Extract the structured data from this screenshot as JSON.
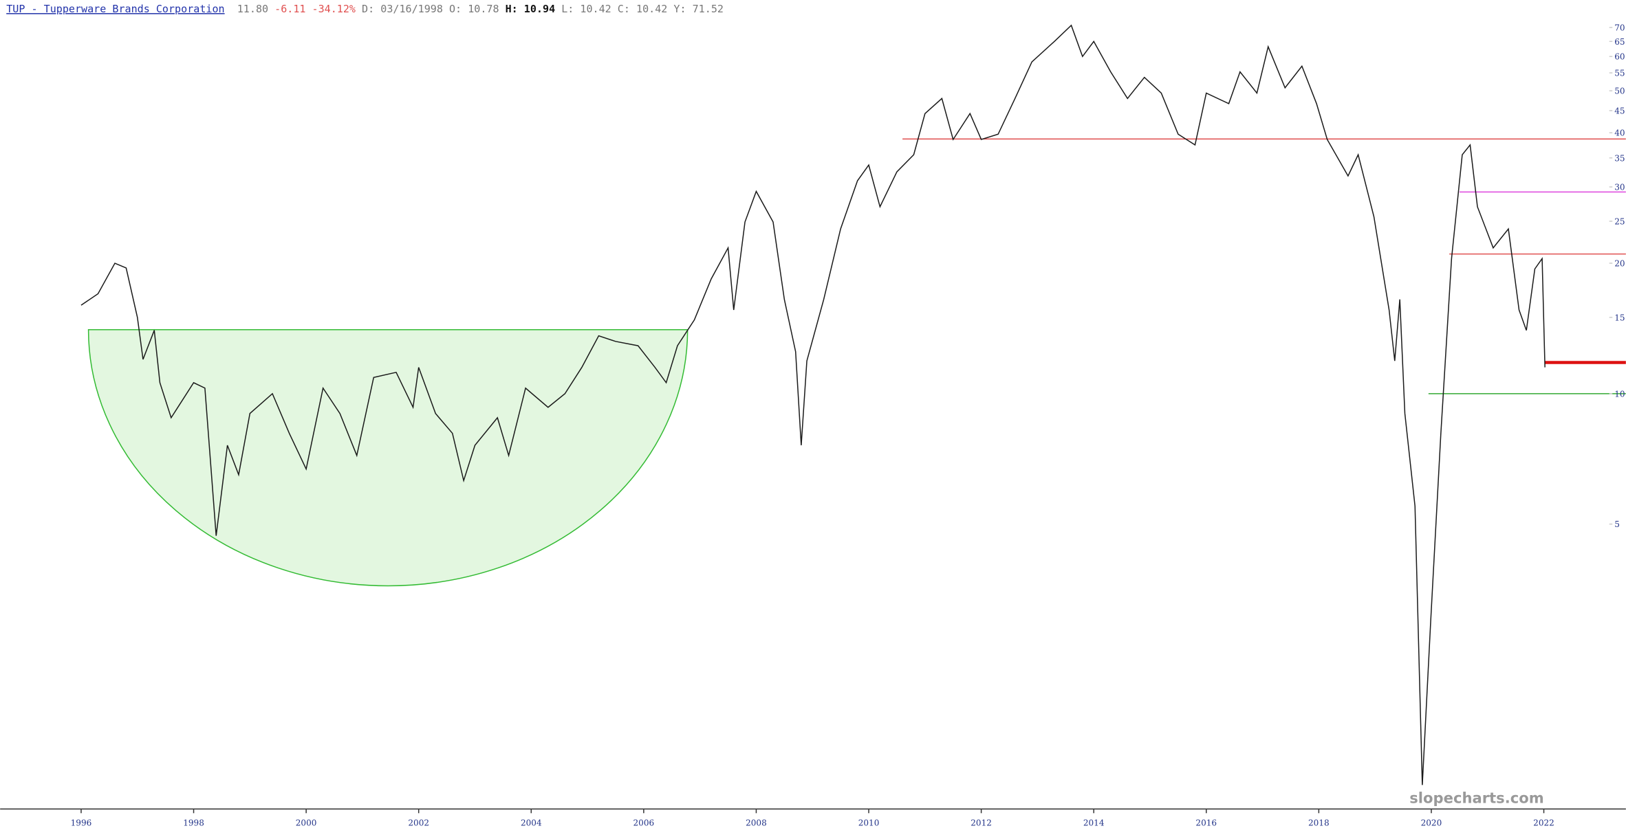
{
  "chart_data": {
    "type": "line",
    "title": "TUP - Tupperware Brands Corporation",
    "quote": [
      {
        "text": "11.80",
        "color": "#777777",
        "bold": false
      },
      {
        "text": "-6.11",
        "color": "#e05050",
        "bold": false
      },
      {
        "text": "-34.12%",
        "color": "#e05050",
        "bold": false
      },
      {
        "text": "D: 03/16/1998",
        "color": "#777777",
        "bold": false
      },
      {
        "text": "O: 10.78",
        "color": "#777777",
        "bold": false
      },
      {
        "text": "H: 10.94",
        "color": "#111111",
        "bold": true
      },
      {
        "text": "L: 10.42",
        "color": "#777777",
        "bold": false
      },
      {
        "text": "C: 10.42",
        "color": "#777777",
        "bold": false
      },
      {
        "text": "Y: 71.52",
        "color": "#777777",
        "bold": false
      }
    ],
    "watermark": "slopecharts.com",
    "color": "#1a1a1a",
    "log_scale": true,
    "xlim": [
      1994.56,
      2023.09
    ],
    "ylim": [
      1.1,
      81
    ],
    "xticks": [
      1996,
      1998,
      2000,
      2002,
      2004,
      2006,
      2008,
      2010,
      2012,
      2014,
      2016,
      2018,
      2020,
      2022
    ],
    "yticks": [
      5,
      10,
      15,
      20,
      25,
      30,
      35,
      40,
      45,
      50,
      55,
      60,
      65,
      70
    ],
    "x": [
      1996.0,
      1996.3,
      1996.6,
      1996.8,
      1997.0,
      1997.1,
      1997.3,
      1997.4,
      1997.6,
      1998.0,
      1998.2,
      1998.4,
      1998.6,
      1998.8,
      1999.0,
      1999.4,
      1999.7,
      2000.0,
      2000.3,
      2000.6,
      2000.9,
      2001.2,
      2001.6,
      2001.9,
      2002.0,
      2002.3,
      2002.6,
      2002.8,
      2003.0,
      2003.4,
      2003.6,
      2003.9,
      2004.3,
      2004.6,
      2004.9,
      2005.2,
      2005.5,
      2005.9,
      2006.2,
      2006.4,
      2006.6,
      2006.9,
      2007.2,
      2007.5,
      2007.6,
      2007.8,
      2008.0,
      2008.3,
      2008.5,
      2008.7,
      2008.8,
      2008.9,
      2009.2,
      2009.5,
      2009.8,
      2010.0,
      2010.2,
      2010.5,
      2010.8,
      2011.0,
      2011.3,
      2011.5,
      2011.8,
      2012.0,
      2012.3,
      2012.6,
      2012.9,
      2013.3,
      2013.6,
      2013.8,
      2014.0,
      2014.3,
      2014.6,
      2014.9,
      2015.2,
      2015.5,
      2015.8,
      2016.0,
      2016.4,
      2016.6,
      2016.9,
      2017.1,
      2017.4,
      2017.7,
      2017.96,
      2018.15,
      2018.52,
      2018.7,
      2018.98,
      2019.16,
      2019.25,
      2019.35,
      2019.44,
      2019.53,
      2019.71,
      2019.84,
      2019.99,
      2020.17,
      2020.27,
      2020.36,
      2020.55,
      2020.69,
      2020.82,
      2021.1,
      2021.37,
      2021.56,
      2021.69,
      2021.84,
      2021.97,
      2022.02
    ],
    "values": [
      16,
      17,
      20,
      19.5,
      15,
      12,
      14,
      10.6,
      8.8,
      10.6,
      10.3,
      4.7,
      7.6,
      6.5,
      9.0,
      10.0,
      8.1,
      6.7,
      10.3,
      9.0,
      7.2,
      10.9,
      11.2,
      9.3,
      11.5,
      9.0,
      8.1,
      6.3,
      7.6,
      8.8,
      7.2,
      10.3,
      9.3,
      10.0,
      11.5,
      13.6,
      13.2,
      12.9,
      11.5,
      10.6,
      12.9,
      14.8,
      18.4,
      21.7,
      15.6,
      24.9,
      29.3,
      24.9,
      16.5,
      12.5,
      7.6,
      11.9,
      16.5,
      24.0,
      31.0,
      33.7,
      27.0,
      32.5,
      35.6,
      44.3,
      48.0,
      38.6,
      44.3,
      38.6,
      39.7,
      48.0,
      58.3,
      65.0,
      70.8,
      60.0,
      65.0,
      55.3,
      48.0,
      53.7,
      49.4,
      39.7,
      37.5,
      49.4,
      46.7,
      55.3,
      49.4,
      63.2,
      50.8,
      57.0,
      46.7,
      38.6,
      31.8,
      35.6,
      25.6,
      18.4,
      15.6,
      11.9,
      16.5,
      9.0,
      5.5,
      1.25,
      3.0,
      8.1,
      13.2,
      20.5,
      35.6,
      37.5,
      27.0,
      21.7,
      24.0,
      15.6,
      14.0,
      19.4,
      20.5,
      11.5
    ],
    "annotations": [
      {
        "type": "cup",
        "x_start": 1996.13,
        "x_end": 2006.78,
        "top": 14.05,
        "bottom": 3.6,
        "color": "#33bb33",
        "fill": "#e3f7e0"
      },
      {
        "type": "hline",
        "value": 38.7,
        "x_start": 2010.6,
        "color": "#e05050",
        "width": 1
      },
      {
        "type": "hline",
        "value": 29.2,
        "x_start": 2020.5,
        "color": "#dd44dd",
        "width": 1
      },
      {
        "type": "hline",
        "value": 21.0,
        "x_start": 2020.32,
        "color": "#e05050",
        "width": 1
      },
      {
        "type": "hline",
        "value": 11.8,
        "x_start": 2022.02,
        "color": "#dd1111",
        "width": 3
      },
      {
        "type": "hline",
        "value": 10.0,
        "x_start": 2019.95,
        "color": "#33aa33",
        "width": 1
      }
    ]
  }
}
